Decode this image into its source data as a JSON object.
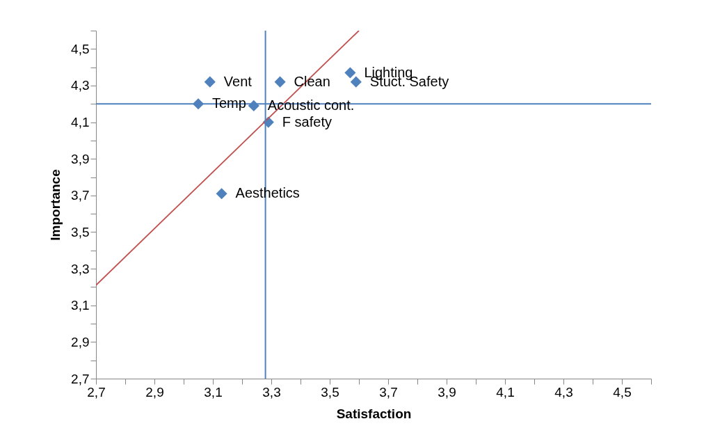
{
  "chart_data": {
    "type": "scatter",
    "xlabel": "Satisfaction",
    "ylabel": "Importance",
    "xlim": [
      2.7,
      4.6
    ],
    "ylim": [
      2.7,
      4.6
    ],
    "xticks": [
      {
        "value": 2.7,
        "label": "2,7"
      },
      {
        "value": 2.8,
        "label": null
      },
      {
        "value": 2.9,
        "label": "2,9"
      },
      {
        "value": 3.0,
        "label": null
      },
      {
        "value": 3.1,
        "label": "3,1"
      },
      {
        "value": 3.2,
        "label": null
      },
      {
        "value": 3.3,
        "label": "3,3"
      },
      {
        "value": 3.4,
        "label": null
      },
      {
        "value": 3.5,
        "label": "3,5"
      },
      {
        "value": 3.6,
        "label": null
      },
      {
        "value": 3.7,
        "label": "3,7"
      },
      {
        "value": 3.8,
        "label": null
      },
      {
        "value": 3.9,
        "label": "3,9"
      },
      {
        "value": 4.0,
        "label": null
      },
      {
        "value": 4.1,
        "label": "4,1"
      },
      {
        "value": 4.2,
        "label": null
      },
      {
        "value": 4.3,
        "label": "4,3"
      },
      {
        "value": 4.4,
        "label": null
      },
      {
        "value": 4.5,
        "label": "4,5"
      },
      {
        "value": 4.6,
        "label": null
      }
    ],
    "yticks": [
      {
        "value": 2.7,
        "label": "2,7"
      },
      {
        "value": 2.8,
        "label": null
      },
      {
        "value": 2.9,
        "label": "2,9"
      },
      {
        "value": 3.0,
        "label": null
      },
      {
        "value": 3.1,
        "label": "3,1"
      },
      {
        "value": 3.2,
        "label": null
      },
      {
        "value": 3.3,
        "label": "3,3"
      },
      {
        "value": 3.4,
        "label": null
      },
      {
        "value": 3.5,
        "label": "3,5"
      },
      {
        "value": 3.6,
        "label": null
      },
      {
        "value": 3.7,
        "label": "3,7"
      },
      {
        "value": 3.8,
        "label": null
      },
      {
        "value": 3.9,
        "label": "3,9"
      },
      {
        "value": 4.0,
        "label": null
      },
      {
        "value": 4.1,
        "label": "4,1"
      },
      {
        "value": 4.2,
        "label": null
      },
      {
        "value": 4.3,
        "label": "4,3"
      },
      {
        "value": 4.4,
        "label": null
      },
      {
        "value": 4.5,
        "label": "4,5"
      },
      {
        "value": 4.6,
        "label": null
      }
    ],
    "series": [
      {
        "marker": "diamond",
        "color": "#4f81bd",
        "x": [
          3.09,
          3.33,
          3.57,
          3.59,
          3.05,
          3.24,
          3.29,
          3.13
        ],
        "values": [
          4.32,
          4.32,
          4.37,
          4.32,
          4.2,
          4.19,
          4.1,
          3.71
        ]
      },
      {
        "type": "line",
        "color": "#c0504d",
        "x": [
          2.7,
          3.6
        ],
        "values": [
          3.21,
          4.6
        ]
      }
    ],
    "ref_lines": [
      {
        "axis": "x",
        "value": 3.28,
        "color": "#4f81bd"
      },
      {
        "axis": "y",
        "value": 4.2,
        "color": "#4f81bd"
      }
    ],
    "annotations": [
      {
        "text": "Vent",
        "x": 3.09,
        "y": 4.32
      },
      {
        "text": "Clean",
        "x": 3.33,
        "y": 4.32
      },
      {
        "text": "Lighting",
        "x": 3.57,
        "y": 4.37
      },
      {
        "text": "Stuct. Safety",
        "x": 3.59,
        "y": 4.32
      },
      {
        "text": "Temp",
        "x": 3.05,
        "y": 4.2
      },
      {
        "text": "Acoustic  cont.",
        "x": 3.24,
        "y": 4.19
      },
      {
        "text": "F safety",
        "x": 3.29,
        "y": 4.1
      },
      {
        "text": "Aesthetics",
        "x": 3.13,
        "y": 3.71
      }
    ]
  }
}
